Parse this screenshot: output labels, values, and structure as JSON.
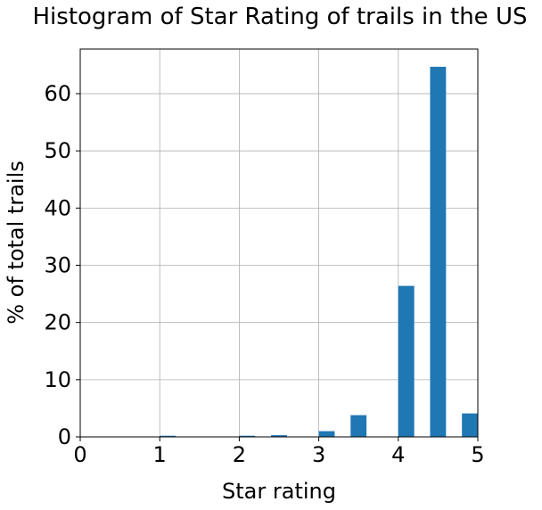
{
  "chart_data": {
    "type": "bar",
    "title": "Histogram of Star Rating of trails in the US",
    "xlabel": "Star rating",
    "ylabel": "% of total trails",
    "xlim": [
      0,
      5
    ],
    "ylim": [
      0,
      67.8
    ],
    "xticks": [
      "0",
      "1",
      "2",
      "3",
      "4",
      "5"
    ],
    "yticks": [
      "0",
      "10",
      "20",
      "30",
      "40",
      "50",
      "60"
    ],
    "grid": true,
    "bar_color": "#1f77b4",
    "bins": [
      {
        "x0": 1.0,
        "x1": 1.2,
        "value": 0.2
      },
      {
        "x0": 2.0,
        "x1": 2.2,
        "value": 0.2
      },
      {
        "x0": 2.4,
        "x1": 2.6,
        "value": 0.3
      },
      {
        "x0": 3.0,
        "x1": 3.2,
        "value": 1.0
      },
      {
        "x0": 3.4,
        "x1": 3.6,
        "value": 3.8
      },
      {
        "x0": 4.0,
        "x1": 4.2,
        "value": 26.4
      },
      {
        "x0": 4.4,
        "x1": 4.6,
        "value": 64.7
      },
      {
        "x0": 4.8,
        "x1": 5.0,
        "value": 4.1
      }
    ]
  }
}
